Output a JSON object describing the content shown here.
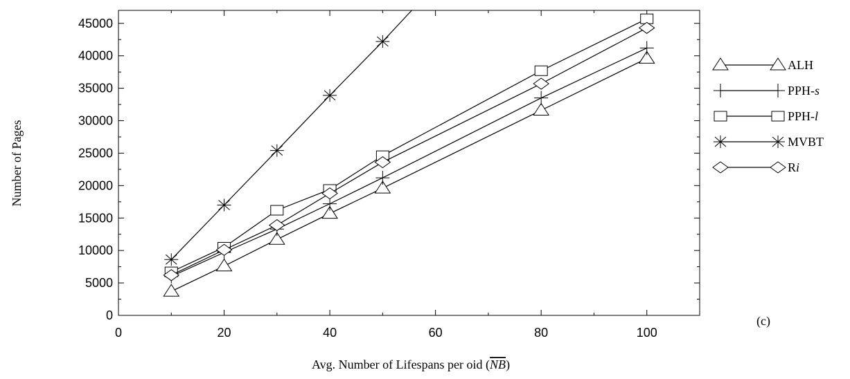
{
  "chart_data": {
    "type": "line",
    "xlabel_prefix": "Avg. Number of Lifespans per oid (",
    "xlabel_symbol": "NB",
    "xlabel_suffix": ")",
    "ylabel": "Number of Pages",
    "panel_label": "(c)",
    "xlim": [
      0,
      110
    ],
    "ylim": [
      0,
      47000
    ],
    "x_ticks": [
      0,
      20,
      40,
      60,
      80,
      100
    ],
    "y_ticks": [
      0,
      5000,
      10000,
      15000,
      20000,
      25000,
      30000,
      35000,
      40000,
      45000
    ],
    "grid": false,
    "legend_position": "right",
    "series": [
      {
        "name": "ALH",
        "name_base": "ALH",
        "name_italic": "",
        "marker": "triangle",
        "x": [
          10,
          20,
          30,
          40,
          50,
          80,
          100
        ],
        "y": [
          3700,
          7600,
          11700,
          15700,
          19600,
          31600,
          39600
        ]
      },
      {
        "name": "PPH-s",
        "name_base": "PPH-",
        "name_italic": "s",
        "marker": "plus",
        "x": [
          10,
          20,
          30,
          40,
          50,
          80,
          100
        ],
        "y": [
          6000,
          9700,
          13300,
          17200,
          21200,
          33500,
          41200
        ]
      },
      {
        "name": "PPH-l",
        "name_base": "PPH-",
        "name_italic": "l",
        "marker": "square",
        "x": [
          10,
          20,
          30,
          40,
          50,
          80,
          100
        ],
        "y": [
          6700,
          10500,
          16200,
          19400,
          24600,
          37700,
          45700
        ]
      },
      {
        "name": "MVBT",
        "name_base": "MVBT",
        "name_italic": "",
        "marker": "star",
        "x": [
          10,
          20,
          30,
          40,
          50,
          55.5
        ],
        "y": [
          8600,
          17000,
          25400,
          33900,
          42200,
          47000
        ]
      },
      {
        "name": "Ri",
        "name_base": "R",
        "name_italic": "i",
        "marker": "diamond",
        "x": [
          10,
          20,
          30,
          40,
          50,
          80,
          100
        ],
        "y": [
          6200,
          10100,
          13900,
          18800,
          23600,
          35700,
          44300
        ]
      }
    ]
  }
}
